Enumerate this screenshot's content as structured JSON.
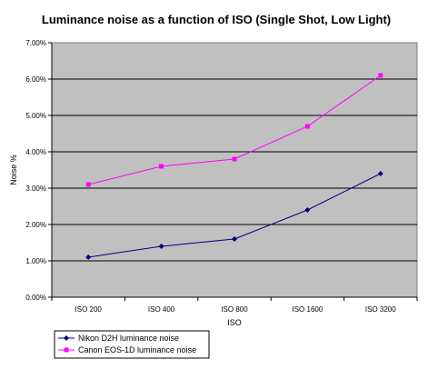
{
  "chart_data": {
    "type": "line",
    "title": "Luminance noise as a function of ISO (Single Shot, Low Light)",
    "xlabel": "ISO",
    "ylabel": "Noise %",
    "categories": [
      "ISO 200",
      "ISO 400",
      "ISO 800",
      "ISO 1600",
      "ISO 3200"
    ],
    "ylim": [
      0,
      7
    ],
    "yticks": [
      "0.00%",
      "1.00%",
      "2.00%",
      "3.00%",
      "4.00%",
      "5.00%",
      "6.00%",
      "7.00%"
    ],
    "grid": true,
    "legend_position": "bottom-left",
    "series": [
      {
        "name": "Nikon D2H luminance noise",
        "values": [
          1.1,
          1.4,
          1.6,
          2.4,
          3.4
        ],
        "color": "#000080",
        "marker": "diamond"
      },
      {
        "name": "Canon EOS-1D luminance noise",
        "values": [
          3.1,
          3.6,
          3.8,
          4.7,
          6.1
        ],
        "color": "#FF00FF",
        "marker": "square"
      }
    ],
    "plot_background": "#C0C0C0"
  }
}
